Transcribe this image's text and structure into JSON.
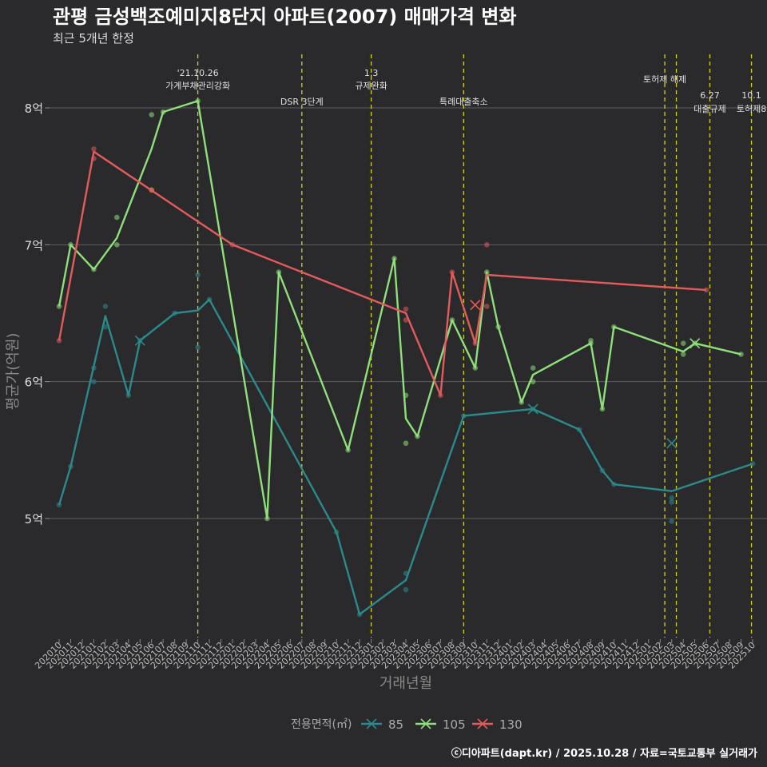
{
  "title": "관평 금성백조예미지8단지 아파트(2007) 매매가격 변화",
  "subtitle": "최근 5개년 한정",
  "caption": "ⓒ디아파트(dapt.kr) / 2025.10.28 / 자료=국토교통부 실거래가",
  "colors": {
    "bg": "#2a292b",
    "s85": "#2a8a8c",
    "s105": "#8ee07a",
    "s130": "#e45b5b",
    "event": "#d4d11c"
  },
  "chart_data": {
    "type": "line",
    "title": "관평 금성백조예미지8단지 아파트(2007) 매매가격 변화",
    "xlabel": "거래년월",
    "ylabel": "평균가(억원)",
    "ylim": [
      4.15,
      8.6
    ],
    "yticks": [
      {
        "v": 5,
        "label": "5억"
      },
      {
        "v": 6,
        "label": "6억"
      },
      {
        "v": 7,
        "label": "7억"
      },
      {
        "v": 8,
        "label": "8억"
      }
    ],
    "x_months": [
      "202010",
      "202011",
      "202012",
      "202101",
      "202102",
      "202103",
      "202104",
      "202105",
      "202106",
      "202107",
      "202108",
      "202109",
      "202110",
      "202111",
      "202112",
      "202201",
      "202202",
      "202203",
      "202204",
      "202205",
      "202206",
      "202207",
      "202208",
      "202209",
      "202210",
      "202211",
      "202212",
      "202301",
      "202302",
      "202303",
      "202304",
      "202305",
      "202306",
      "202307",
      "202308",
      "202309",
      "202310",
      "202311",
      "202312",
      "202401",
      "202402",
      "202403",
      "202404",
      "202405",
      "202406",
      "202407",
      "202408",
      "202409",
      "202410",
      "202411",
      "202412",
      "202501",
      "202502",
      "202503",
      "202504",
      "202505",
      "202506",
      "202507",
      "202508",
      "202509",
      "202510"
    ],
    "legend_title": "전용면적(㎡)",
    "series": [
      {
        "name": "85",
        "color": "#2a8a8c",
        "line": [
          [
            0,
            5.1
          ],
          [
            1,
            5.38
          ],
          [
            4,
            6.48
          ],
          [
            6,
            5.9
          ],
          [
            7,
            6.3
          ],
          [
            10,
            6.5
          ],
          [
            12,
            6.52
          ],
          [
            13,
            6.6
          ],
          [
            24,
            4.9
          ],
          [
            26,
            4.3
          ],
          [
            30,
            4.55
          ],
          [
            35,
            5.75
          ],
          [
            41,
            5.8
          ],
          [
            45,
            5.65
          ],
          [
            47,
            5.35
          ],
          [
            48,
            5.25
          ],
          [
            53,
            5.2
          ],
          [
            60,
            5.4
          ]
        ],
        "points": [
          [
            0,
            5.1
          ],
          [
            1,
            5.38
          ],
          [
            3,
            6.1
          ],
          [
            3,
            6.0
          ],
          [
            4,
            6.55
          ],
          [
            4,
            6.4
          ],
          [
            6,
            5.9
          ],
          [
            7,
            6.3
          ],
          [
            10,
            6.5
          ],
          [
            12,
            6.78
          ],
          [
            12,
            6.25
          ],
          [
            13,
            6.6
          ],
          [
            24,
            4.9
          ],
          [
            26,
            4.3
          ],
          [
            30,
            4.6
          ],
          [
            30,
            4.48
          ],
          [
            35,
            5.75
          ],
          [
            41,
            5.8
          ],
          [
            45,
            5.65
          ],
          [
            47,
            5.35
          ],
          [
            48,
            5.25
          ],
          [
            53,
            5.15
          ],
          [
            53,
            5.12
          ],
          [
            53,
            4.98
          ],
          [
            60,
            5.4
          ]
        ],
        "crosses": [
          [
            7,
            6.3
          ],
          [
            41,
            5.8
          ],
          [
            53,
            5.55
          ]
        ]
      },
      {
        "name": "105",
        "color": "#8ee07a",
        "line": [
          [
            0,
            6.55
          ],
          [
            1,
            7.0
          ],
          [
            3,
            6.82
          ],
          [
            5,
            7.05
          ],
          [
            8,
            7.7
          ],
          [
            9,
            7.97
          ],
          [
            12,
            8.05
          ],
          [
            18,
            5.0
          ],
          [
            19,
            6.8
          ],
          [
            25,
            5.5
          ],
          [
            29,
            6.9
          ],
          [
            30,
            5.73
          ],
          [
            31,
            5.6
          ],
          [
            34,
            6.45
          ],
          [
            36,
            6.1
          ],
          [
            37,
            6.8
          ],
          [
            38,
            6.4
          ],
          [
            40,
            5.85
          ],
          [
            41,
            6.05
          ],
          [
            46,
            6.28
          ],
          [
            47,
            5.8
          ],
          [
            48,
            6.4
          ],
          [
            54,
            6.22
          ],
          [
            55,
            6.28
          ],
          [
            59,
            6.2
          ]
        ],
        "points": [
          [
            0,
            6.55
          ],
          [
            1,
            7.0
          ],
          [
            3,
            6.82
          ],
          [
            5,
            7.2
          ],
          [
            5,
            7.0
          ],
          [
            8,
            7.95
          ],
          [
            8,
            7.4
          ],
          [
            9,
            7.97
          ],
          [
            12,
            8.05
          ],
          [
            18,
            5.0
          ],
          [
            19,
            6.8
          ],
          [
            25,
            5.5
          ],
          [
            29,
            6.9
          ],
          [
            30,
            5.9
          ],
          [
            30,
            5.55
          ],
          [
            31,
            5.6
          ],
          [
            34,
            6.45
          ],
          [
            36,
            6.1
          ],
          [
            37,
            6.8
          ],
          [
            38,
            6.4
          ],
          [
            40,
            5.85
          ],
          [
            41,
            6.1
          ],
          [
            41,
            6.0
          ],
          [
            46,
            6.3
          ],
          [
            46,
            6.28
          ],
          [
            47,
            5.8
          ],
          [
            48,
            6.4
          ],
          [
            54,
            6.28
          ],
          [
            54,
            6.2
          ],
          [
            55,
            6.28
          ],
          [
            59,
            6.2
          ]
        ],
        "crosses": [
          [
            55,
            6.28
          ]
        ]
      },
      {
        "name": "130",
        "color": "#e45b5b",
        "line": [
          [
            0,
            6.3
          ],
          [
            3,
            7.68
          ],
          [
            15,
            7.0
          ],
          [
            30,
            6.5
          ],
          [
            33,
            5.9
          ],
          [
            34,
            6.8
          ],
          [
            36,
            6.28
          ],
          [
            37,
            6.78
          ],
          [
            56,
            6.67
          ]
        ],
        "points": [
          [
            0,
            6.3
          ],
          [
            3,
            7.7
          ],
          [
            3,
            7.63
          ],
          [
            8,
            7.4
          ],
          [
            15,
            7.0
          ],
          [
            30,
            6.53
          ],
          [
            30,
            6.45
          ],
          [
            33,
            5.9
          ],
          [
            34,
            6.8
          ],
          [
            36,
            6.28
          ],
          [
            37,
            7.0
          ],
          [
            37,
            6.55
          ],
          [
            56,
            6.67
          ]
        ],
        "crosses": [
          [
            36,
            6.56
          ]
        ]
      }
    ],
    "events": [
      {
        "x": 12,
        "lines": [
          "'21.10.26",
          "가계부채관리강화"
        ],
        "level": 0
      },
      {
        "x": 21,
        "lines": [
          "DSR 3단계"
        ],
        "level": 2
      },
      {
        "x": 27,
        "lines": [
          "1.3",
          "규제완화"
        ],
        "level": 0
      },
      {
        "x": 35,
        "lines": [
          "특례대출축소"
        ],
        "level": 2
      },
      {
        "x": 52.4,
        "lines": [
          "토허제 해제"
        ],
        "level": 1
      },
      {
        "x": 53.4,
        "lines": [],
        "level": 1
      },
      {
        "x": 56.3,
        "lines": [
          "6.27",
          "대출규제"
        ],
        "level": 2
      },
      {
        "x": 59.9,
        "lines": [
          "10.1",
          "토허제8"
        ],
        "level": 2
      }
    ]
  }
}
